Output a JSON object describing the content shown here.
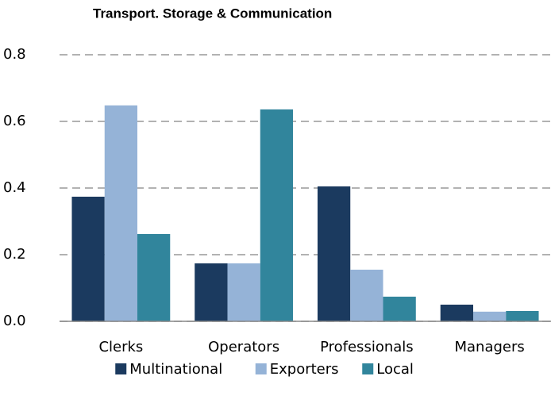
{
  "chart_data": {
    "type": "bar",
    "title": "Transport. Storage & Communication",
    "categories": [
      "Clerks",
      "Operators",
      "Professionals",
      "Managers"
    ],
    "series": [
      {
        "name": "Multinational",
        "color": "#1b3a5f",
        "values": [
          0.374,
          0.174,
          0.405,
          0.05
        ]
      },
      {
        "name": "Exporters",
        "color": "#95b3d7",
        "values": [
          0.648,
          0.174,
          0.155,
          0.029
        ]
      },
      {
        "name": "Local",
        "color": "#31859c",
        "values": [
          0.262,
          0.636,
          0.074,
          0.031
        ]
      }
    ],
    "ylim": [
      0,
      0.8
    ],
    "yticks": [
      {
        "value": 0,
        "label": "0.0"
      },
      0.2,
      0.4,
      0.6,
      0.8
    ],
    "grid": true,
    "legend": "bottom"
  }
}
